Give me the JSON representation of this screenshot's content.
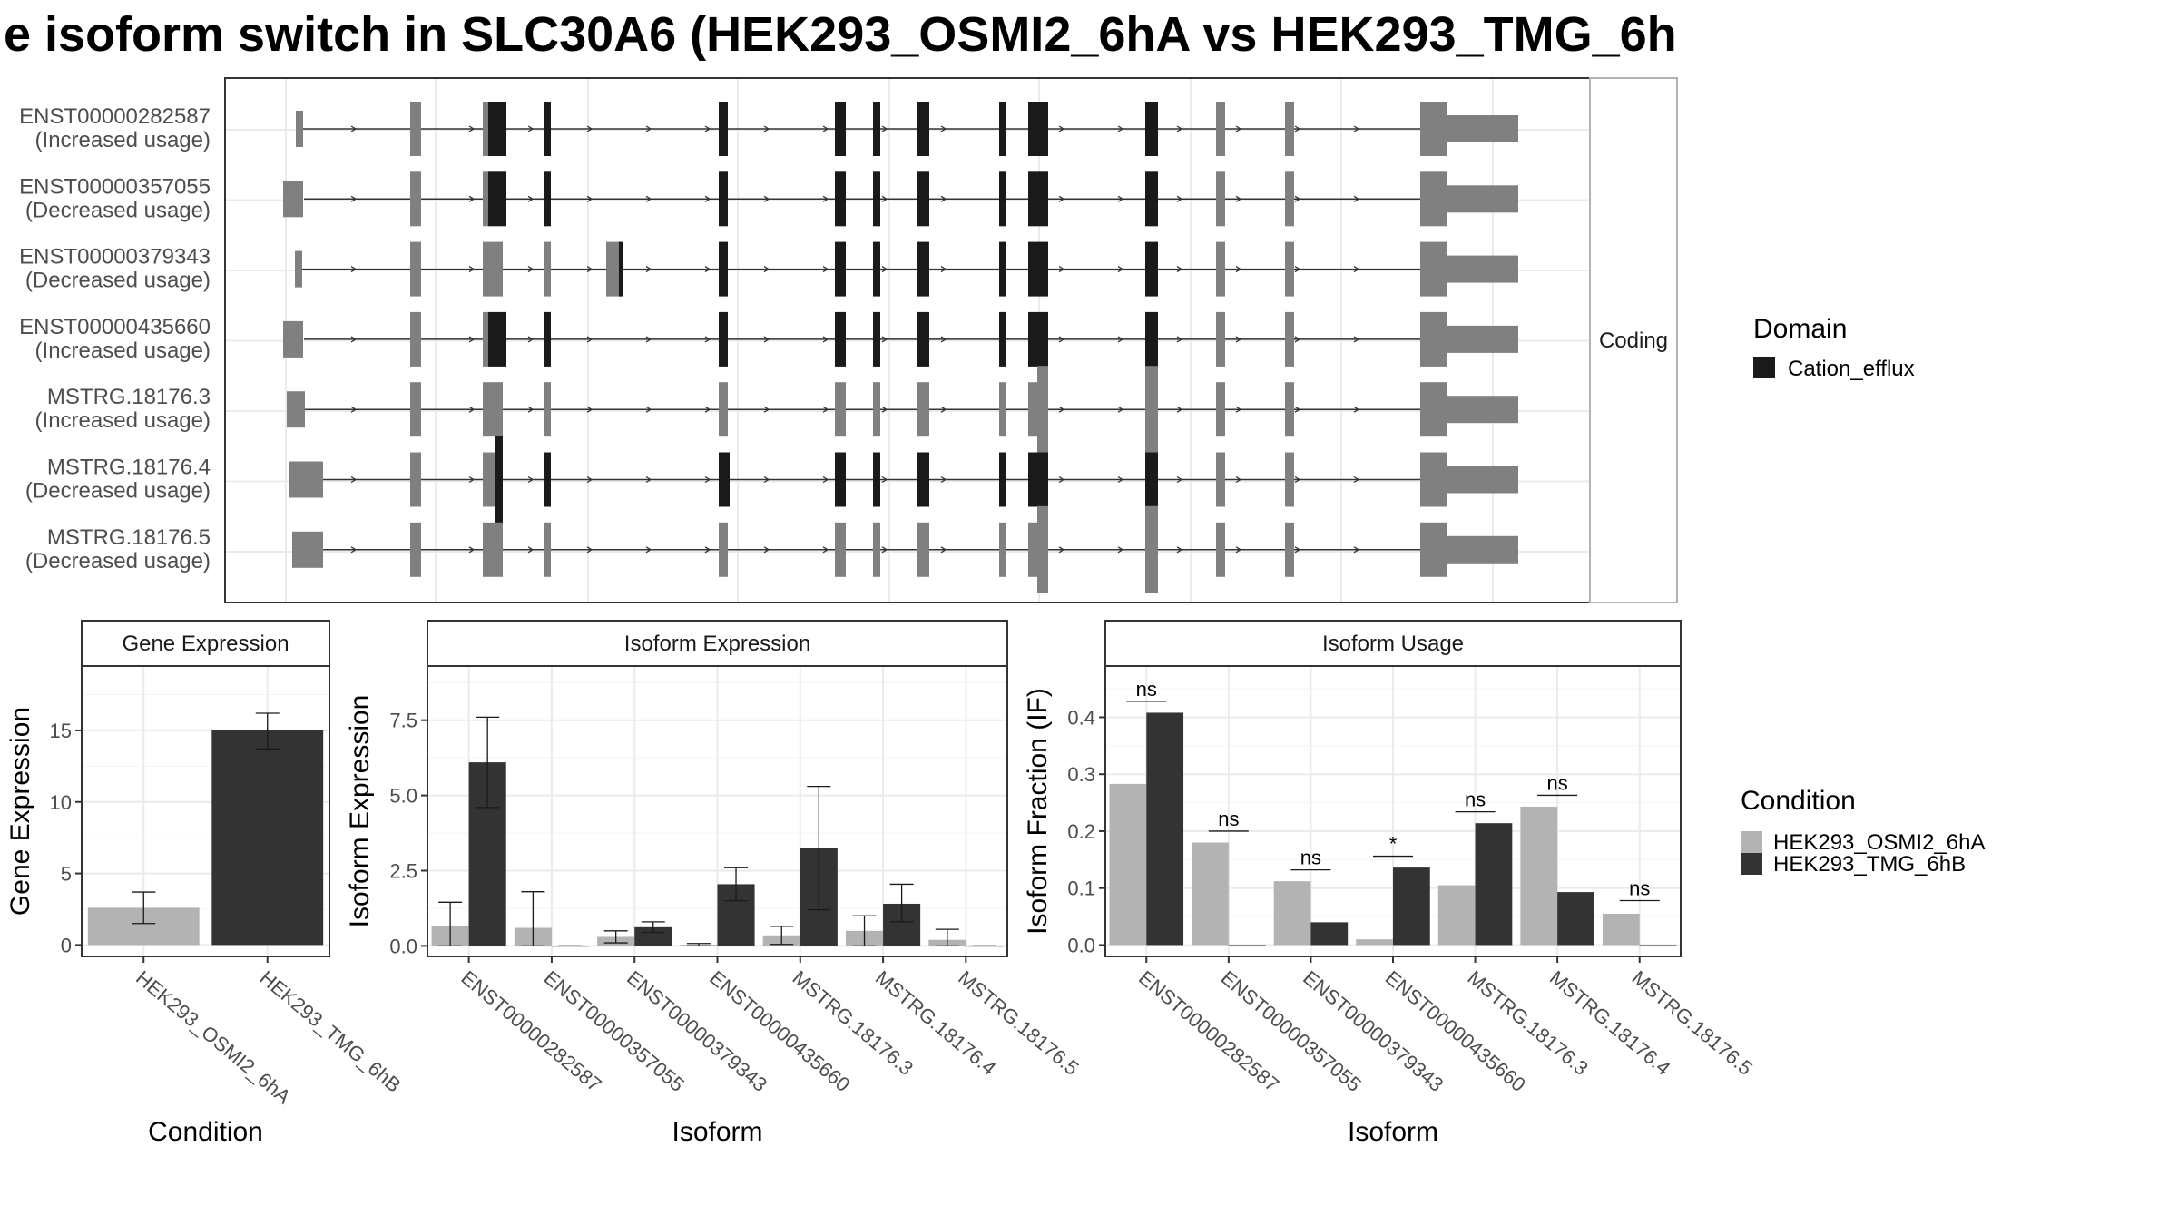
{
  "title": "e isoform switch in SLC30A6 (HEK293_OSMI2_6hA vs HEK293_TMG_6h",
  "colors": {
    "cation_efflux": "#1a1a1a",
    "exon": "#808080",
    "cond_a": "#b3b3b3",
    "cond_b": "#333333",
    "strip_fill": "#ffffff",
    "grid": "#ebebeb"
  },
  "structure": {
    "side_label": "Coding",
    "domain_legend_title": "Domain",
    "domain_legend_item": "Cation_efflux",
    "transcripts": [
      {
        "id": "ENST00000282587",
        "usage": "(Increased usage)"
      },
      {
        "id": "ENST00000357055",
        "usage": "(Decreased usage)"
      },
      {
        "id": "ENST00000379343",
        "usage": "(Decreased usage)"
      },
      {
        "id": "ENST00000435660",
        "usage": "(Increased usage)"
      },
      {
        "id": "MSTRG.18176.3",
        "usage": "(Increased usage)"
      },
      {
        "id": "MSTRG.18176.4",
        "usage": "(Decreased usage)"
      },
      {
        "id": "MSTRG.18176.5",
        "usage": "(Decreased usage)"
      }
    ]
  },
  "condition_legend": {
    "title": "Condition",
    "items": [
      "HEK293_OSMI2_6hA",
      "HEK293_TMG_6hB"
    ]
  },
  "chart_data": [
    {
      "type": "bar",
      "title": "Gene Expression",
      "xlabel": "Condition",
      "ylabel": "Gene Expression",
      "categories": [
        "HEK293_OSMI2_6hA",
        "HEK293_TMG_6hB"
      ],
      "values": [
        2.6,
        15.0
      ],
      "error": [
        [
          1.5,
          3.7
        ],
        [
          13.7,
          16.2
        ]
      ],
      "ylim": [
        -0.8,
        19.5
      ],
      "yticks": [
        0,
        5,
        10,
        15
      ],
      "ytick_labels": [
        "0",
        "5",
        "10",
        "15"
      ]
    },
    {
      "type": "bar",
      "title": "Isoform Expression",
      "xlabel": "Isoform",
      "ylabel": "Isoform Expression",
      "categories": [
        "ENST00000282587",
        "ENST00000357055",
        "ENST00000379343",
        "ENST00000435660",
        "MSTRG.18176.3",
        "MSTRG.18176.4",
        "MSTRG.18176.5"
      ],
      "series": [
        {
          "name": "HEK293_OSMI2_6hA",
          "values": [
            0.65,
            0.6,
            0.3,
            0.04,
            0.35,
            0.5,
            0.2
          ],
          "error": [
            [
              0.0,
              1.45
            ],
            [
              0.0,
              1.8
            ],
            [
              0.1,
              0.5
            ],
            [
              0.0,
              0.08
            ],
            [
              0.05,
              0.65
            ],
            [
              0.0,
              1.0
            ],
            [
              0.0,
              0.55
            ]
          ]
        },
        {
          "name": "HEK293_TMG_6hB",
          "values": [
            6.1,
            0.0,
            0.62,
            2.05,
            3.25,
            1.4,
            0.0
          ],
          "error": [
            [
              4.6,
              7.6
            ],
            [
              0.0,
              0.0
            ],
            [
              0.45,
              0.8
            ],
            [
              1.5,
              2.6
            ],
            [
              1.2,
              5.3
            ],
            [
              0.8,
              2.05
            ],
            [
              0.0,
              0.0
            ]
          ]
        }
      ],
      "ylim": [
        -0.35,
        9.3
      ],
      "yticks": [
        0,
        2.5,
        5.0,
        7.5
      ],
      "ytick_labels": [
        "0.0",
        "2.5",
        "5.0",
        "7.5"
      ]
    },
    {
      "type": "bar",
      "title": "Isoform Usage",
      "xlabel": "Isoform",
      "ylabel": "Isoform Fraction (IF)",
      "categories": [
        "ENST00000282587",
        "ENST00000357055",
        "ENST00000379343",
        "ENST00000435660",
        "MSTRG.18176.3",
        "MSTRG.18176.4",
        "MSTRG.18176.5"
      ],
      "series": [
        {
          "name": "HEK293_OSMI2_6hA",
          "values": [
            0.283,
            0.18,
            0.112,
            0.01,
            0.105,
            0.243,
            0.055
          ]
        },
        {
          "name": "HEK293_TMG_6hB",
          "values": [
            0.408,
            0.0,
            0.04,
            0.136,
            0.214,
            0.093,
            0.0
          ]
        }
      ],
      "significance": [
        "ns",
        "ns",
        "ns",
        "*",
        "ns",
        "ns",
        "ns"
      ],
      "sig_y": [
        0.428,
        0.2,
        0.132,
        0.156,
        0.234,
        0.263,
        0.078
      ],
      "ylim": [
        -0.02,
        0.49
      ],
      "yticks": [
        0,
        0.1,
        0.2,
        0.3,
        0.4
      ],
      "ytick_labels": [
        "0.0",
        "0.1",
        "0.2",
        "0.3",
        "0.4"
      ]
    }
  ]
}
